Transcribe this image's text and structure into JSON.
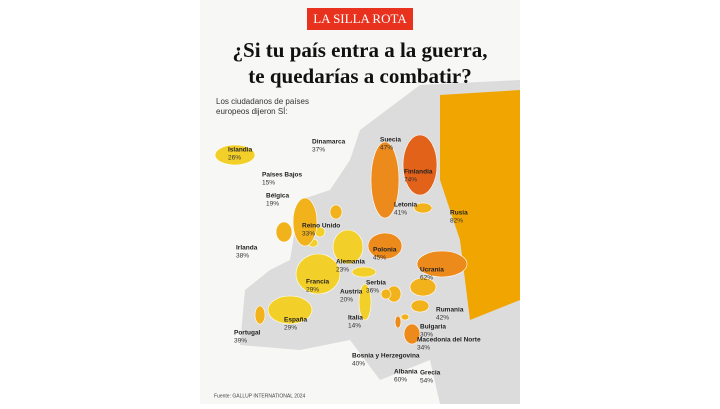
{
  "header": {
    "logo": "LA SILLA ROTA",
    "title_lines": [
      "¿Si tu país entra a la guerra,",
      "te quedarías a combatir?"
    ],
    "subtitle_lines": [
      "Los ciudadanos de países",
      "europeos dijeron SÍ:"
    ]
  },
  "countries": [
    {
      "name": "Islandia",
      "value": 26,
      "value_label": "26%"
    },
    {
      "name": "Dinamarca",
      "value": 37,
      "value_label": "37%"
    },
    {
      "name": "Suecia",
      "value": 47,
      "value_label": "47%"
    },
    {
      "name": "Finlandia",
      "value": 74,
      "value_label": "74%"
    },
    {
      "name": "Países Bajos",
      "value": 15,
      "value_label": "15%"
    },
    {
      "name": "Bélgica",
      "value": 19,
      "value_label": "19%"
    },
    {
      "name": "Reino Unido",
      "value": 33,
      "value_label": "33%"
    },
    {
      "name": "Irlanda",
      "value": 38,
      "value_label": "38%"
    },
    {
      "name": "Letonia",
      "value": 41,
      "value_label": "41%"
    },
    {
      "name": "Rusia",
      "value": 82,
      "value_label": "82%"
    },
    {
      "name": "Polonia",
      "value": 45,
      "value_label": "45%"
    },
    {
      "name": "Alemania",
      "value": 23,
      "value_label": "23%"
    },
    {
      "name": "Ucrania",
      "value": 62,
      "value_label": "62%"
    },
    {
      "name": "Francia",
      "value": 29,
      "value_label": "29%"
    },
    {
      "name": "Serbia",
      "value": 36,
      "value_label": "36%"
    },
    {
      "name": "Austria",
      "value": 20,
      "value_label": "20%"
    },
    {
      "name": "Rumania",
      "value": 42,
      "value_label": "42%"
    },
    {
      "name": "España",
      "value": 29,
      "value_label": "29%"
    },
    {
      "name": "Italia",
      "value": 14,
      "value_label": "14%"
    },
    {
      "name": "Bulgaria",
      "value": 30,
      "value_label": "30%"
    },
    {
      "name": "Portugal",
      "value": 39,
      "value_label": "39%"
    },
    {
      "name": "Macedonia del Norte",
      "value": 34,
      "value_label": "34%"
    },
    {
      "name": "Bosnia y Herzegovina",
      "value": 40,
      "value_label": "40%"
    },
    {
      "name": "Albania",
      "value": 60,
      "value_label": "60%"
    },
    {
      "name": "Grecia",
      "value": 54,
      "value_label": "54%"
    }
  ],
  "source": "Fuente: GALLUP INTERNATIONAL 2024"
}
